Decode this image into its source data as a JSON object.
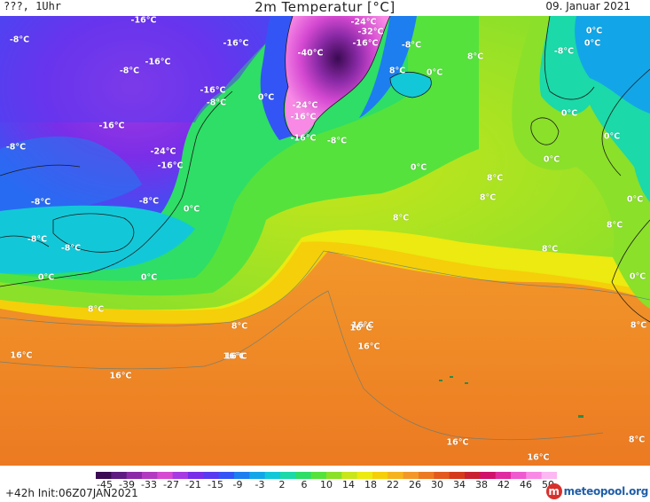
{
  "header": {
    "left": "???, 1Uhr",
    "title": "2m Temperatur [°C]",
    "date": "09. Januar 2021"
  },
  "footer": {
    "run": "+42h  Init:06Z07JAN2021",
    "brand_text": "meteopool.org",
    "brand_icon": "meteopool-logo-icon"
  },
  "legend": {
    "ticks": [
      "-45",
      "-39",
      "-33",
      "-27",
      "-21",
      "-15",
      "-9",
      "-3",
      "2",
      "6",
      "10",
      "14",
      "18",
      "22",
      "26",
      "30",
      "34",
      "38",
      "42",
      "46",
      "50"
    ],
    "colors": [
      "#3a0a52",
      "#5e1a80",
      "#8a2aa6",
      "#b23ac0",
      "#d64ad2",
      "#a53be0",
      "#7a2ee8",
      "#5a3af0",
      "#3455f5",
      "#1d7ef0",
      "#12a6e8",
      "#12c8d8",
      "#1bd9a8",
      "#2ede66",
      "#56e23c",
      "#8be02a",
      "#c8e61a",
      "#ecea10",
      "#f5cf0a",
      "#f5b41e",
      "#f2982a",
      "#ec7a22",
      "#e25a1e",
      "#d43a1a",
      "#c82030",
      "#d0106a",
      "#e02aa0",
      "#ee5ad0",
      "#f88ae6",
      "#fcb8f2"
    ]
  },
  "map": {
    "labels": [
      {
        "text": "-16°C"
      },
      {
        "text": "-8°C"
      },
      {
        "text": "-16°C"
      },
      {
        "text": "-16°C"
      },
      {
        "text": "-8°C"
      },
      {
        "text": "-16°C"
      },
      {
        "text": "-16°C"
      },
      {
        "text": "-8°C"
      },
      {
        "text": "0°C"
      },
      {
        "text": "-16°C"
      },
      {
        "text": "-8°C"
      },
      {
        "text": "-24°C"
      },
      {
        "text": "-16°C"
      },
      {
        "text": "-8°C"
      },
      {
        "text": "-8°C"
      },
      {
        "text": "0°C"
      },
      {
        "text": "-8°C"
      },
      {
        "text": "-8°C"
      },
      {
        "text": "0°C"
      },
      {
        "text": "0°C"
      },
      {
        "text": "8°C"
      },
      {
        "text": "8°C"
      },
      {
        "text": "16°C"
      },
      {
        "text": "16°C"
      },
      {
        "text": "16°C"
      },
      {
        "text": "8°C"
      },
      {
        "text": "16°C"
      },
      {
        "text": "16°C"
      },
      {
        "text": "-24°C"
      },
      {
        "text": "-32°C"
      },
      {
        "text": "-16°C"
      },
      {
        "text": "-40°C"
      },
      {
        "text": "-8°C"
      },
      {
        "text": "0°C"
      },
      {
        "text": "-24°C"
      },
      {
        "text": "-16°C"
      },
      {
        "text": "-8°C"
      },
      {
        "text": "0°C"
      },
      {
        "text": "8°C"
      },
      {
        "text": "8°C"
      },
      {
        "text": "8°C"
      },
      {
        "text": "8°C"
      },
      {
        "text": "8°C"
      },
      {
        "text": "16°C"
      },
      {
        "text": "0°C"
      },
      {
        "text": "-8°C"
      },
      {
        "text": "0°C"
      },
      {
        "text": "0°C"
      },
      {
        "text": "0°C"
      },
      {
        "text": "0°C"
      },
      {
        "text": "0°C"
      },
      {
        "text": "8°C"
      },
      {
        "text": "0°C"
      },
      {
        "text": "8°C"
      },
      {
        "text": "16°C"
      },
      {
        "text": "8°C"
      },
      {
        "text": "16°C"
      },
      {
        "text": "16°C"
      }
    ]
  }
}
